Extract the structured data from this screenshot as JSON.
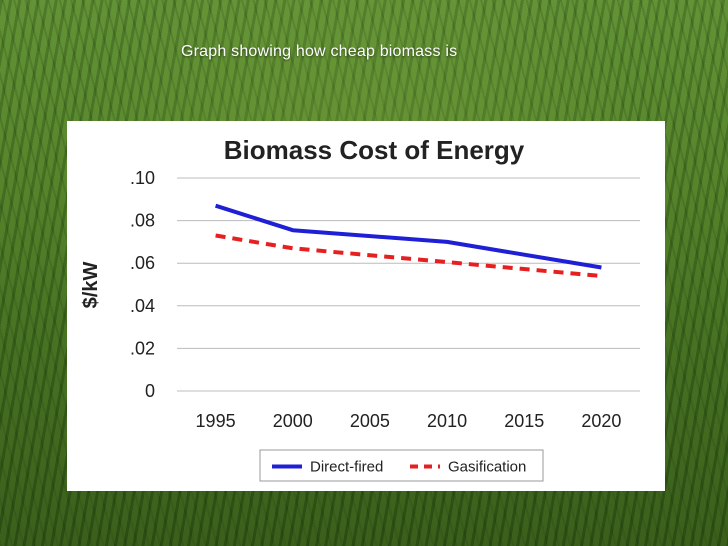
{
  "slide": {
    "caption": "Graph showing how cheap biomass is"
  },
  "chart_data": {
    "type": "line",
    "title": "Biomass Cost of Energy",
    "xlabel": "",
    "ylabel": "$/kW",
    "ylim": [
      0,
      0.1
    ],
    "y_ticks": [
      {
        "value": 0.1,
        "label": ".10"
      },
      {
        "value": 0.08,
        "label": ".08"
      },
      {
        "value": 0.06,
        "label": ".06"
      },
      {
        "value": 0.04,
        "label": ".04"
      },
      {
        "value": 0.02,
        "label": ".02"
      },
      {
        "value": 0,
        "label": "0"
      }
    ],
    "x_ticks": [
      "1995",
      "2000",
      "2005",
      "2010",
      "2015",
      "2020"
    ],
    "grid": "horizontal",
    "legend_position": "bottom",
    "series": [
      {
        "name": "Direct-fired",
        "color": "#1f1fd6",
        "dash": "solid",
        "x": [
          1995,
          2000,
          2010,
          2020
        ],
        "y": [
          0.087,
          0.0755,
          0.07,
          0.058
        ]
      },
      {
        "name": "Gasification",
        "color": "#e62020",
        "dash": "dashed",
        "x": [
          1995,
          2000,
          2010,
          2020
        ],
        "y": [
          0.073,
          0.067,
          0.0605,
          0.054
        ]
      }
    ]
  }
}
